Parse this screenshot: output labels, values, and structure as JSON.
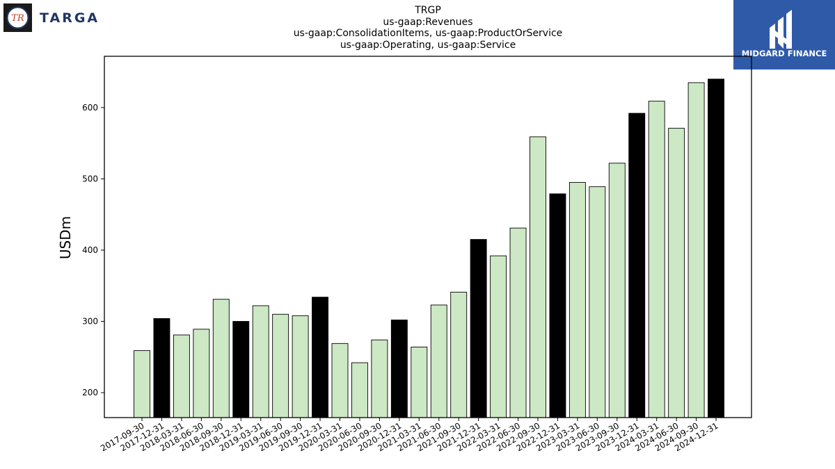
{
  "logos": {
    "left_text": "TARGA",
    "left_monogram": "TR",
    "right_text": "MIDGARD FINANCE"
  },
  "titles": {
    "line1": "TRGP",
    "line2": "us-gaap:Revenues",
    "line3": "us-gaap:ConsolidationItems, us-gaap:ProductOrService",
    "line4": "us-gaap:Operating, us-gaap:Service"
  },
  "colors": {
    "bar_default": "#cde8c4",
    "bar_highlight": "#000000",
    "bar_edge": "#000000",
    "logo_right_bg": "#2f5aa8",
    "logo_left_text": "#1f3566"
  },
  "chart_data": {
    "type": "bar",
    "title": "TRGP",
    "subtitle": [
      "us-gaap:Revenues",
      "us-gaap:ConsolidationItems, us-gaap:ProductOrService",
      "us-gaap:Operating, us-gaap:Service"
    ],
    "xlabel": "",
    "ylabel": "USDm",
    "ylim": [
      165,
      672
    ],
    "yticks": [
      200,
      300,
      400,
      500,
      600
    ],
    "grid": false,
    "highlight_rule": "quarter ending 12-31 shown in black",
    "categories": [
      "2017-09-30",
      "2017-12-31",
      "2018-03-31",
      "2018-06-30",
      "2018-09-30",
      "2018-12-31",
      "2019-03-31",
      "2019-06-30",
      "2019-09-30",
      "2019-12-31",
      "2020-03-31",
      "2020-06-30",
      "2020-09-30",
      "2020-12-31",
      "2021-03-31",
      "2021-06-30",
      "2021-09-30",
      "2021-12-31",
      "2022-03-31",
      "2022-06-30",
      "2022-09-30",
      "2022-12-31",
      "2023-03-31",
      "2023-06-30",
      "2023-09-30",
      "2023-12-31",
      "2024-03-31",
      "2024-06-30",
      "2024-09-30",
      "2024-12-31"
    ],
    "values": [
      259,
      304,
      281,
      289,
      331,
      300,
      322,
      310,
      308,
      334,
      269,
      242,
      274,
      302,
      264,
      323,
      341,
      415,
      392,
      431,
      559,
      479,
      495,
      489,
      522,
      592,
      609,
      571,
      635,
      640
    ],
    "highlight": [
      false,
      true,
      false,
      false,
      false,
      true,
      false,
      false,
      false,
      true,
      false,
      false,
      false,
      true,
      false,
      false,
      false,
      true,
      false,
      false,
      false,
      true,
      false,
      false,
      false,
      true,
      false,
      false,
      false,
      true
    ]
  }
}
